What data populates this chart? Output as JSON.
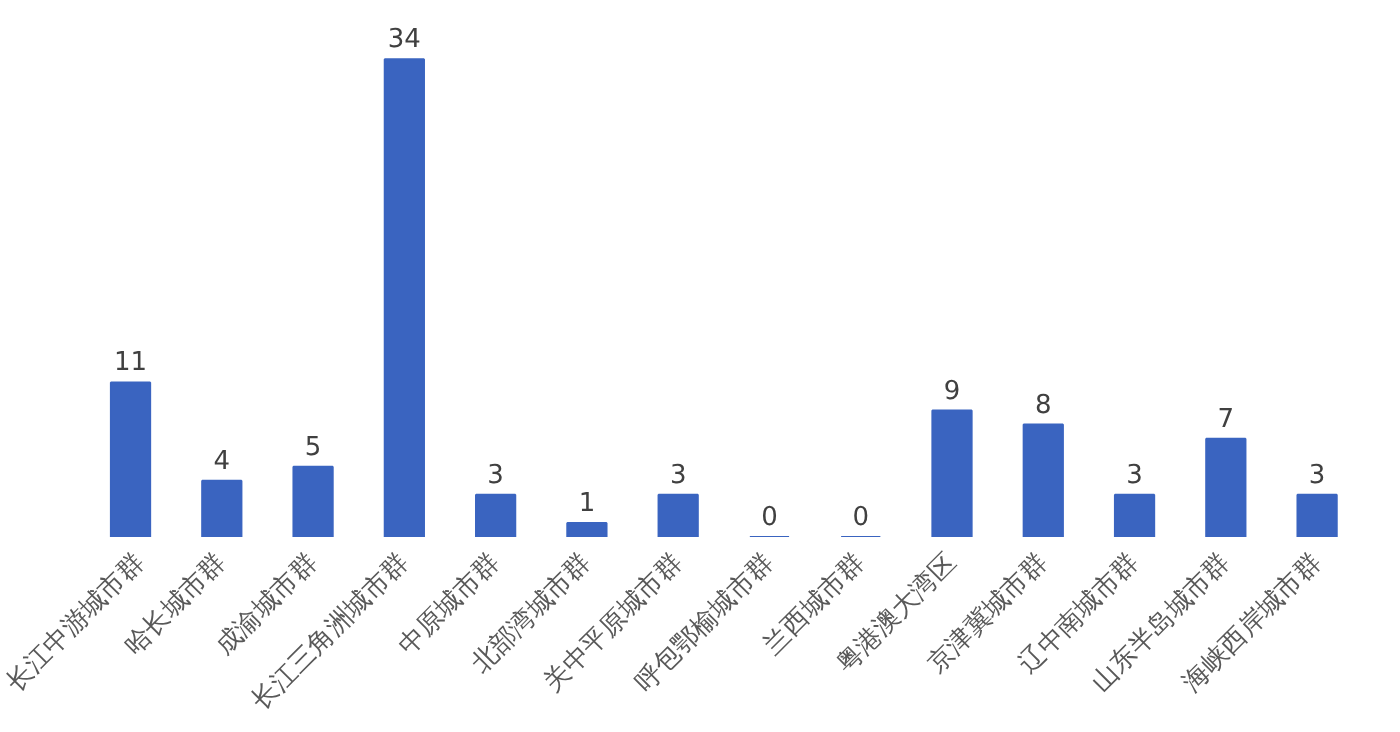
{
  "chart_data": {
    "type": "bar",
    "categories": [
      "长江中游城市群",
      "哈长城市群",
      "成渝城市群",
      "长江三角洲城市群",
      "中原城市群",
      "北部湾城市群",
      "关中平原城市群",
      "呼包鄂榆城市群",
      "兰西城市群",
      "粤港澳大湾区",
      "京津冀城市群",
      "辽中南城市群",
      "山东半岛城市群",
      "海峡西岸城市群"
    ],
    "values": [
      11,
      4,
      5,
      34,
      3,
      1,
      3,
      0,
      0,
      9,
      8,
      3,
      7,
      3
    ],
    "color": "#3a64c0",
    "data_labels": true,
    "grid": false
  }
}
